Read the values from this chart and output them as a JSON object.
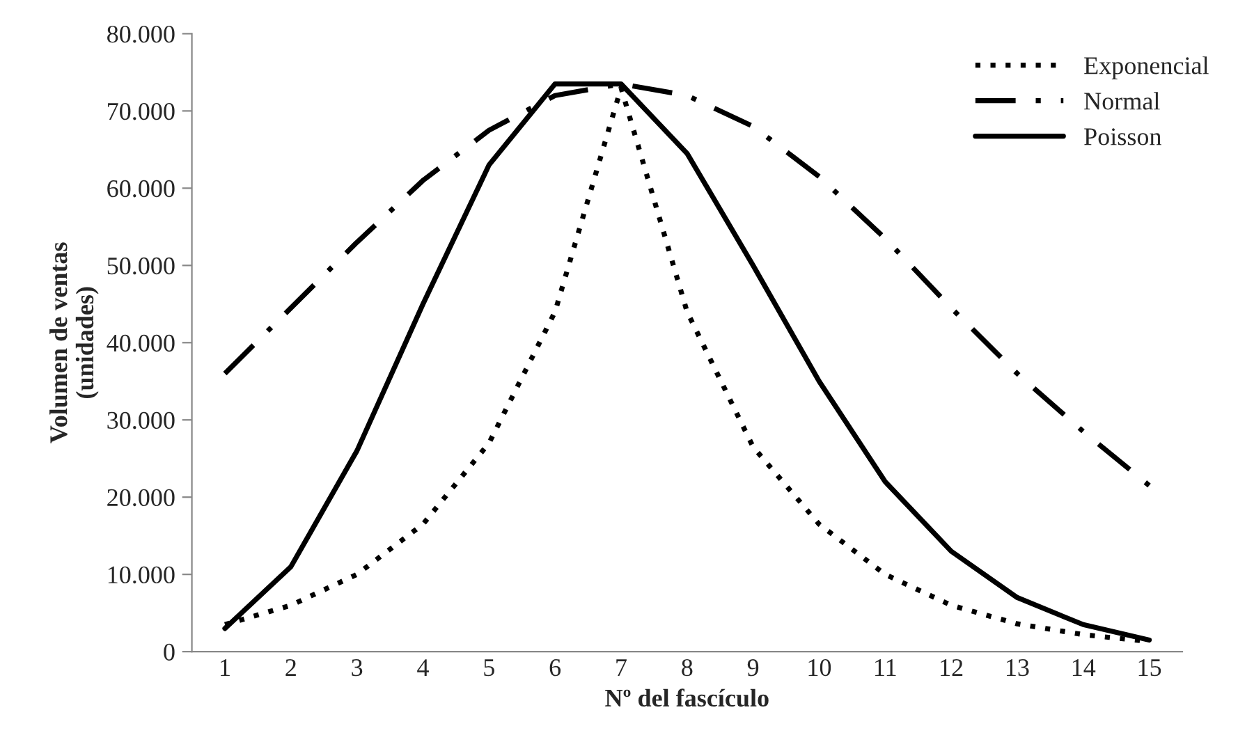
{
  "chart_data": {
    "type": "line",
    "xlabel": "Nº del fascículo",
    "ylabel": "Volumen de ventas\n(unidades)",
    "categories": [
      "1",
      "2",
      "3",
      "4",
      "5",
      "6",
      "7",
      "8",
      "9",
      "10",
      "11",
      "12",
      "13",
      "14",
      "15"
    ],
    "series": [
      {
        "name": "Exponencial",
        "color": "#000000",
        "line_style": "dotted",
        "values": [
          3500,
          6000,
          10000,
          16500,
          27000,
          44000,
          73000,
          44000,
          26500,
          16500,
          10000,
          6000,
          3600,
          2200,
          1300
        ]
      },
      {
        "name": "Normal",
        "color": "#000000",
        "line_style": "dashdot",
        "values": [
          36000,
          44500,
          53000,
          61000,
          67500,
          72000,
          73500,
          72000,
          68000,
          61500,
          53500,
          44500,
          36000,
          28500,
          21500
        ]
      },
      {
        "name": "Poisson",
        "color": "#000000",
        "line_style": "solid",
        "values": [
          3000,
          11000,
          26000,
          45000,
          63000,
          73500,
          73500,
          64500,
          50000,
          35000,
          22000,
          13000,
          7000,
          3500,
          1500
        ]
      }
    ],
    "ylim": [
      0,
      80000
    ],
    "yticks": [
      0,
      {
        "value": 10000,
        "label": "10.000"
      },
      {
        "value": 20000,
        "label": "20.000"
      },
      {
        "value": 30000,
        "label": "30.000"
      },
      {
        "value": 40000,
        "label": "40.000"
      },
      {
        "value": 50000,
        "label": "50.000"
      },
      {
        "value": 60000,
        "label": "60.000"
      },
      {
        "value": 70000,
        "label": "70.000"
      },
      {
        "value": 80000,
        "label": "80.000"
      }
    ],
    "grid": false,
    "legend": "top right",
    "marker": "none"
  }
}
